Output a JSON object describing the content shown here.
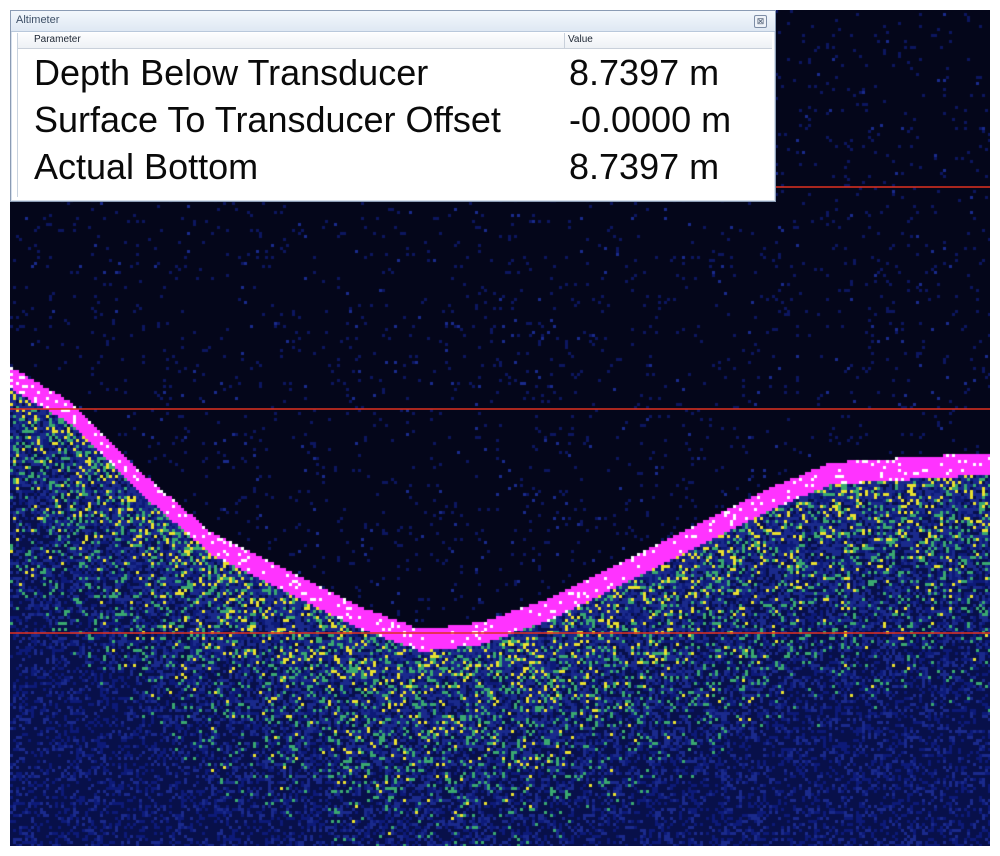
{
  "window": {
    "title": "Altimeter",
    "close_glyph": "⊠"
  },
  "table": {
    "columns": [
      "Parameter",
      "Value"
    ],
    "rows": [
      {
        "parameter": "Depth Below Transducer",
        "value": "8.7397 m"
      },
      {
        "parameter": "Surface To Transducer Offset",
        "value": "-0.0000 m"
      },
      {
        "parameter": "Actual Bottom",
        "value": "8.7397 m"
      }
    ]
  },
  "colors": {
    "background": "#04061a",
    "noise": "#1a2a8c",
    "bottom_echo": "#ff33ff",
    "subbottom_yellow": "#e8e030",
    "subbottom_green": "#3aa870",
    "range_lines": "#e03020"
  }
}
